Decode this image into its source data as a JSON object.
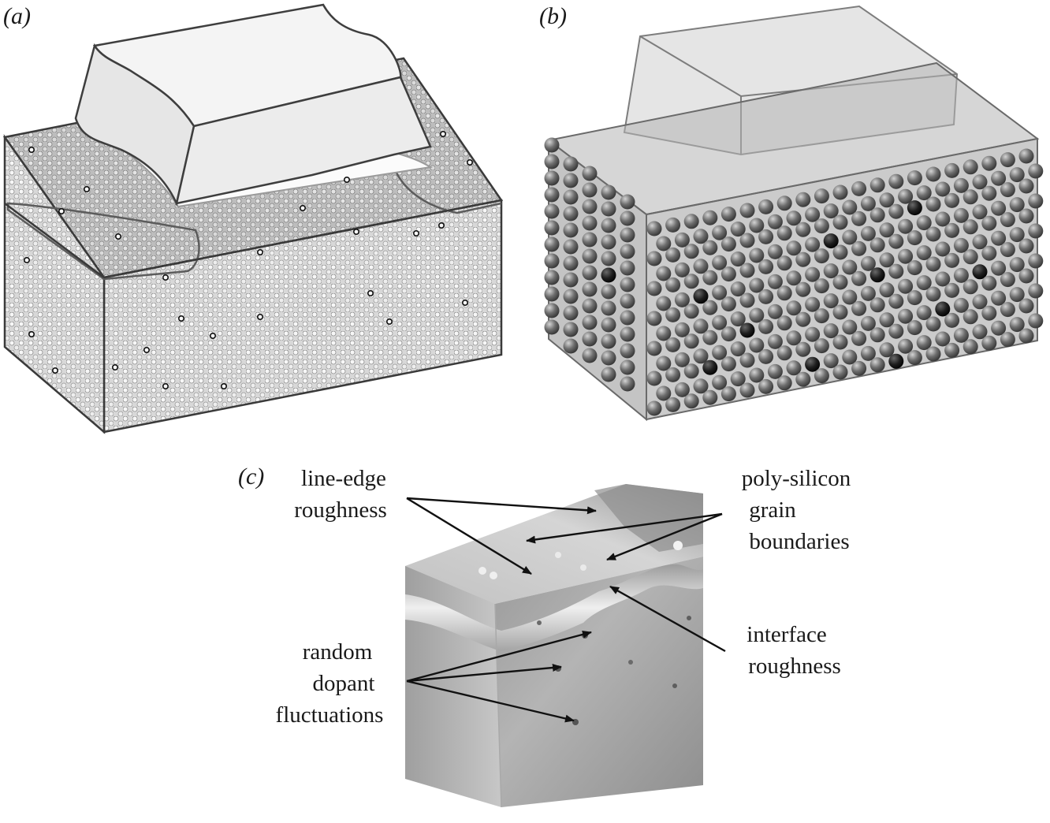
{
  "panels": {
    "a": {
      "label": "(a)"
    },
    "b": {
      "label": "(b)"
    },
    "c": {
      "label": "(c)"
    }
  },
  "annotations": {
    "line_edge": [
      "line-edge",
      "roughness"
    ],
    "poly_silicon": [
      "poly-silicon",
      "grain",
      "boundaries"
    ],
    "interface": [
      "interface",
      "roughness"
    ],
    "dopant": [
      "random",
      "dopant",
      "fluctuations"
    ]
  },
  "colors": {
    "gate": "#f2f2f2",
    "lattice": "#c8c8c8",
    "atom": "#6b6b6b",
    "dopant_atom": "#1e1e1e",
    "field_light": "#d6d6d6",
    "field_dark": "#8a8a8a"
  }
}
